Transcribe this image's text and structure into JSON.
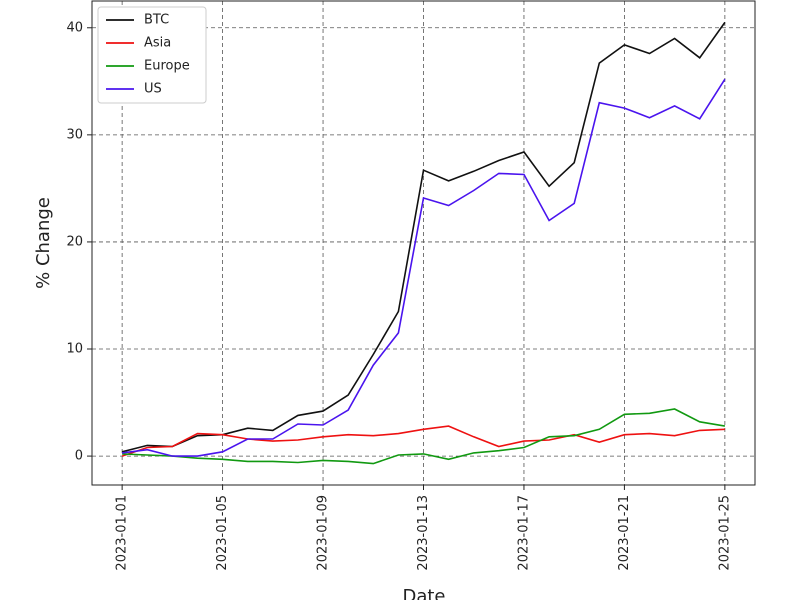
{
  "chart_data": {
    "type": "line",
    "xlabel": "Date",
    "ylabel": "% Change",
    "x": [
      "2023-01-01",
      "2023-01-02",
      "2023-01-03",
      "2023-01-04",
      "2023-01-05",
      "2023-01-06",
      "2023-01-07",
      "2023-01-08",
      "2023-01-09",
      "2023-01-10",
      "2023-01-11",
      "2023-01-12",
      "2023-01-13",
      "2023-01-14",
      "2023-01-15",
      "2023-01-16",
      "2023-01-17",
      "2023-01-18",
      "2023-01-19",
      "2023-01-20",
      "2023-01-21",
      "2023-01-22",
      "2023-01-23",
      "2023-01-24",
      "2023-01-25"
    ],
    "xticks": [
      "2023-01-01",
      "2023-01-05",
      "2023-01-09",
      "2023-01-13",
      "2023-01-17",
      "2023-01-21",
      "2023-01-25"
    ],
    "ylim": [
      -2.7,
      42.5
    ],
    "yticks": [
      0,
      10,
      20,
      30,
      40
    ],
    "grid": true,
    "legend": "upper left",
    "series": [
      {
        "name": "BTC",
        "color": "#111111",
        "values": [
          0.4,
          1.0,
          0.9,
          1.9,
          2.0,
          2.6,
          2.4,
          3.8,
          4.2,
          5.7,
          9.5,
          13.5,
          26.7,
          25.7,
          26.6,
          27.6,
          28.4,
          25.2,
          27.4,
          36.7,
          38.4,
          37.6,
          39.0,
          37.2,
          40.5
        ]
      },
      {
        "name": "Asia",
        "color": "#ee1111",
        "values": [
          0.0,
          0.8,
          0.9,
          2.1,
          2.0,
          1.6,
          1.4,
          1.5,
          1.8,
          2.0,
          1.9,
          2.1,
          2.5,
          2.8,
          1.8,
          0.9,
          1.4,
          1.5,
          2.0,
          1.3,
          2.0,
          2.1,
          1.9,
          2.4,
          2.5
        ]
      },
      {
        "name": "Europe",
        "color": "#119911",
        "values": [
          0.2,
          0.1,
          0.0,
          -0.2,
          -0.3,
          -0.5,
          -0.5,
          -0.6,
          -0.4,
          -0.5,
          -0.7,
          0.1,
          0.2,
          -0.3,
          0.3,
          0.5,
          0.8,
          1.8,
          1.9,
          2.5,
          3.9,
          4.0,
          4.4,
          3.2,
          2.8
        ]
      },
      {
        "name": "US",
        "color": "#4a14ee",
        "values": [
          0.3,
          0.6,
          0.0,
          0.0,
          0.4,
          1.6,
          1.6,
          3.0,
          2.9,
          4.3,
          8.5,
          11.5,
          24.1,
          23.4,
          24.8,
          26.4,
          26.3,
          22.0,
          23.6,
          33.0,
          32.5,
          31.6,
          32.7,
          31.5,
          35.2
        ]
      }
    ]
  }
}
